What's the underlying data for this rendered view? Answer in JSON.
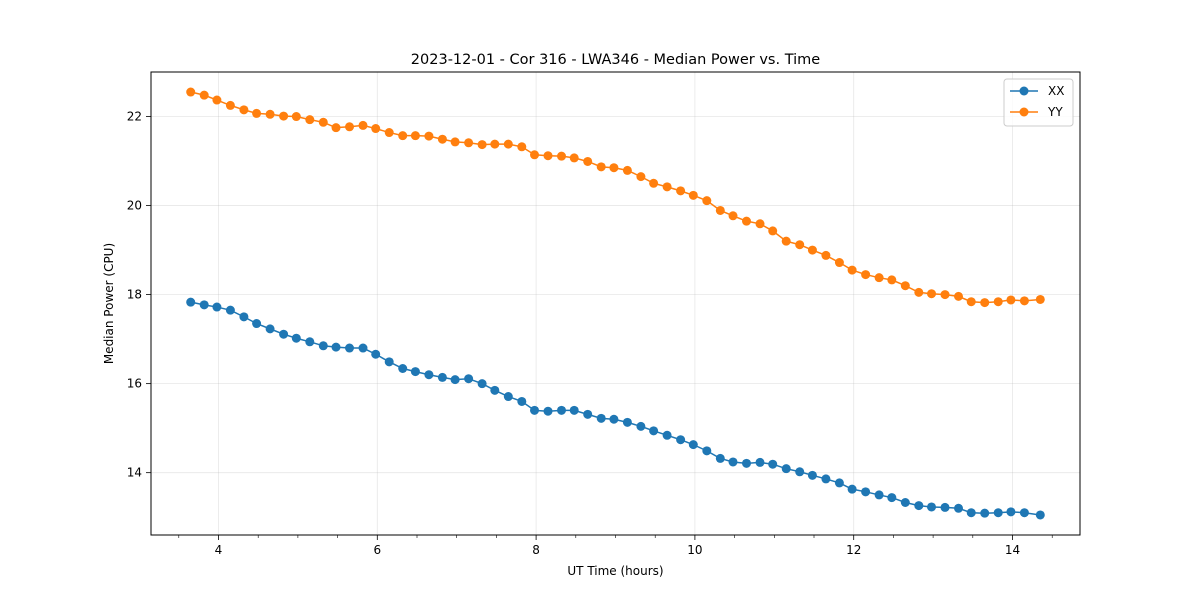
{
  "chart_data": {
    "type": "line",
    "title": "2023-12-01 - Cor 316 - LWA346 - Median Power vs. Time",
    "xlabel": "UT Time (hours)",
    "ylabel": "Median Power (CPU)",
    "xlim": [
      3.15,
      14.85
    ],
    "ylim": [
      12.6,
      23.0
    ],
    "xticks": [
      4,
      6,
      8,
      10,
      12,
      14
    ],
    "xtick_labels": [
      "4",
      "6",
      "8",
      "10",
      "12",
      "14"
    ],
    "yticks": [
      14,
      16,
      18,
      20,
      22
    ],
    "ytick_labels": [
      "14",
      "16",
      "18",
      "20",
      "22"
    ],
    "grid": true,
    "legend_position": "top-right",
    "x": [
      3.65,
      3.82,
      3.98,
      4.15,
      4.32,
      4.48,
      4.65,
      4.82,
      4.98,
      5.15,
      5.32,
      5.48,
      5.65,
      5.82,
      5.98,
      6.15,
      6.32,
      6.48,
      6.65,
      6.82,
      6.98,
      7.15,
      7.32,
      7.48,
      7.65,
      7.82,
      7.98,
      8.15,
      8.32,
      8.48,
      8.65,
      8.82,
      8.98,
      9.15,
      9.32,
      9.48,
      9.65,
      9.82,
      9.98,
      10.15,
      10.32,
      10.48,
      10.65,
      10.82,
      10.98,
      11.15,
      11.32,
      11.48,
      11.65,
      11.82,
      11.98,
      12.15,
      12.32,
      12.48,
      12.65,
      12.82,
      12.98,
      13.15,
      13.32,
      13.48,
      13.65,
      13.82,
      13.98,
      14.15,
      14.35
    ],
    "series": [
      {
        "name": "XX",
        "color": "#1f77b4",
        "values": [
          17.83,
          17.77,
          17.72,
          17.65,
          17.5,
          17.35,
          17.23,
          17.11,
          17.02,
          16.94,
          16.85,
          16.82,
          16.8,
          16.8,
          16.66,
          16.49,
          16.34,
          16.27,
          16.2,
          16.14,
          16.09,
          16.11,
          16.0,
          15.85,
          15.71,
          15.6,
          15.4,
          15.38,
          15.4,
          15.4,
          15.31,
          15.22,
          15.2,
          15.13,
          15.04,
          14.94,
          14.84,
          14.74,
          14.63,
          14.49,
          14.32,
          14.24,
          14.21,
          14.23,
          14.19,
          14.09,
          14.02,
          13.94,
          13.86,
          13.77,
          13.63,
          13.57,
          13.5,
          13.44,
          13.33,
          13.26,
          13.23,
          13.22,
          13.2,
          13.1,
          13.09,
          13.1,
          13.12,
          13.1,
          13.05
        ]
      },
      {
        "name": "YY",
        "color": "#ff7f0e",
        "values": [
          22.55,
          22.48,
          22.37,
          22.25,
          22.15,
          22.07,
          22.05,
          22.01,
          22.0,
          21.93,
          21.87,
          21.75,
          21.77,
          21.8,
          21.73,
          21.64,
          21.57,
          21.57,
          21.56,
          21.49,
          21.43,
          21.41,
          21.37,
          21.38,
          21.38,
          21.32,
          21.14,
          21.12,
          21.11,
          21.07,
          20.99,
          20.87,
          20.85,
          20.79,
          20.65,
          20.5,
          20.42,
          20.33,
          20.23,
          20.11,
          19.89,
          19.77,
          19.65,
          19.59,
          19.43,
          19.2,
          19.12,
          19.0,
          18.88,
          18.72,
          18.55,
          18.45,
          18.38,
          18.33,
          18.2,
          18.05,
          18.02,
          18.0,
          17.96,
          17.84,
          17.82,
          17.84,
          17.88,
          17.86,
          17.89
        ]
      }
    ]
  }
}
